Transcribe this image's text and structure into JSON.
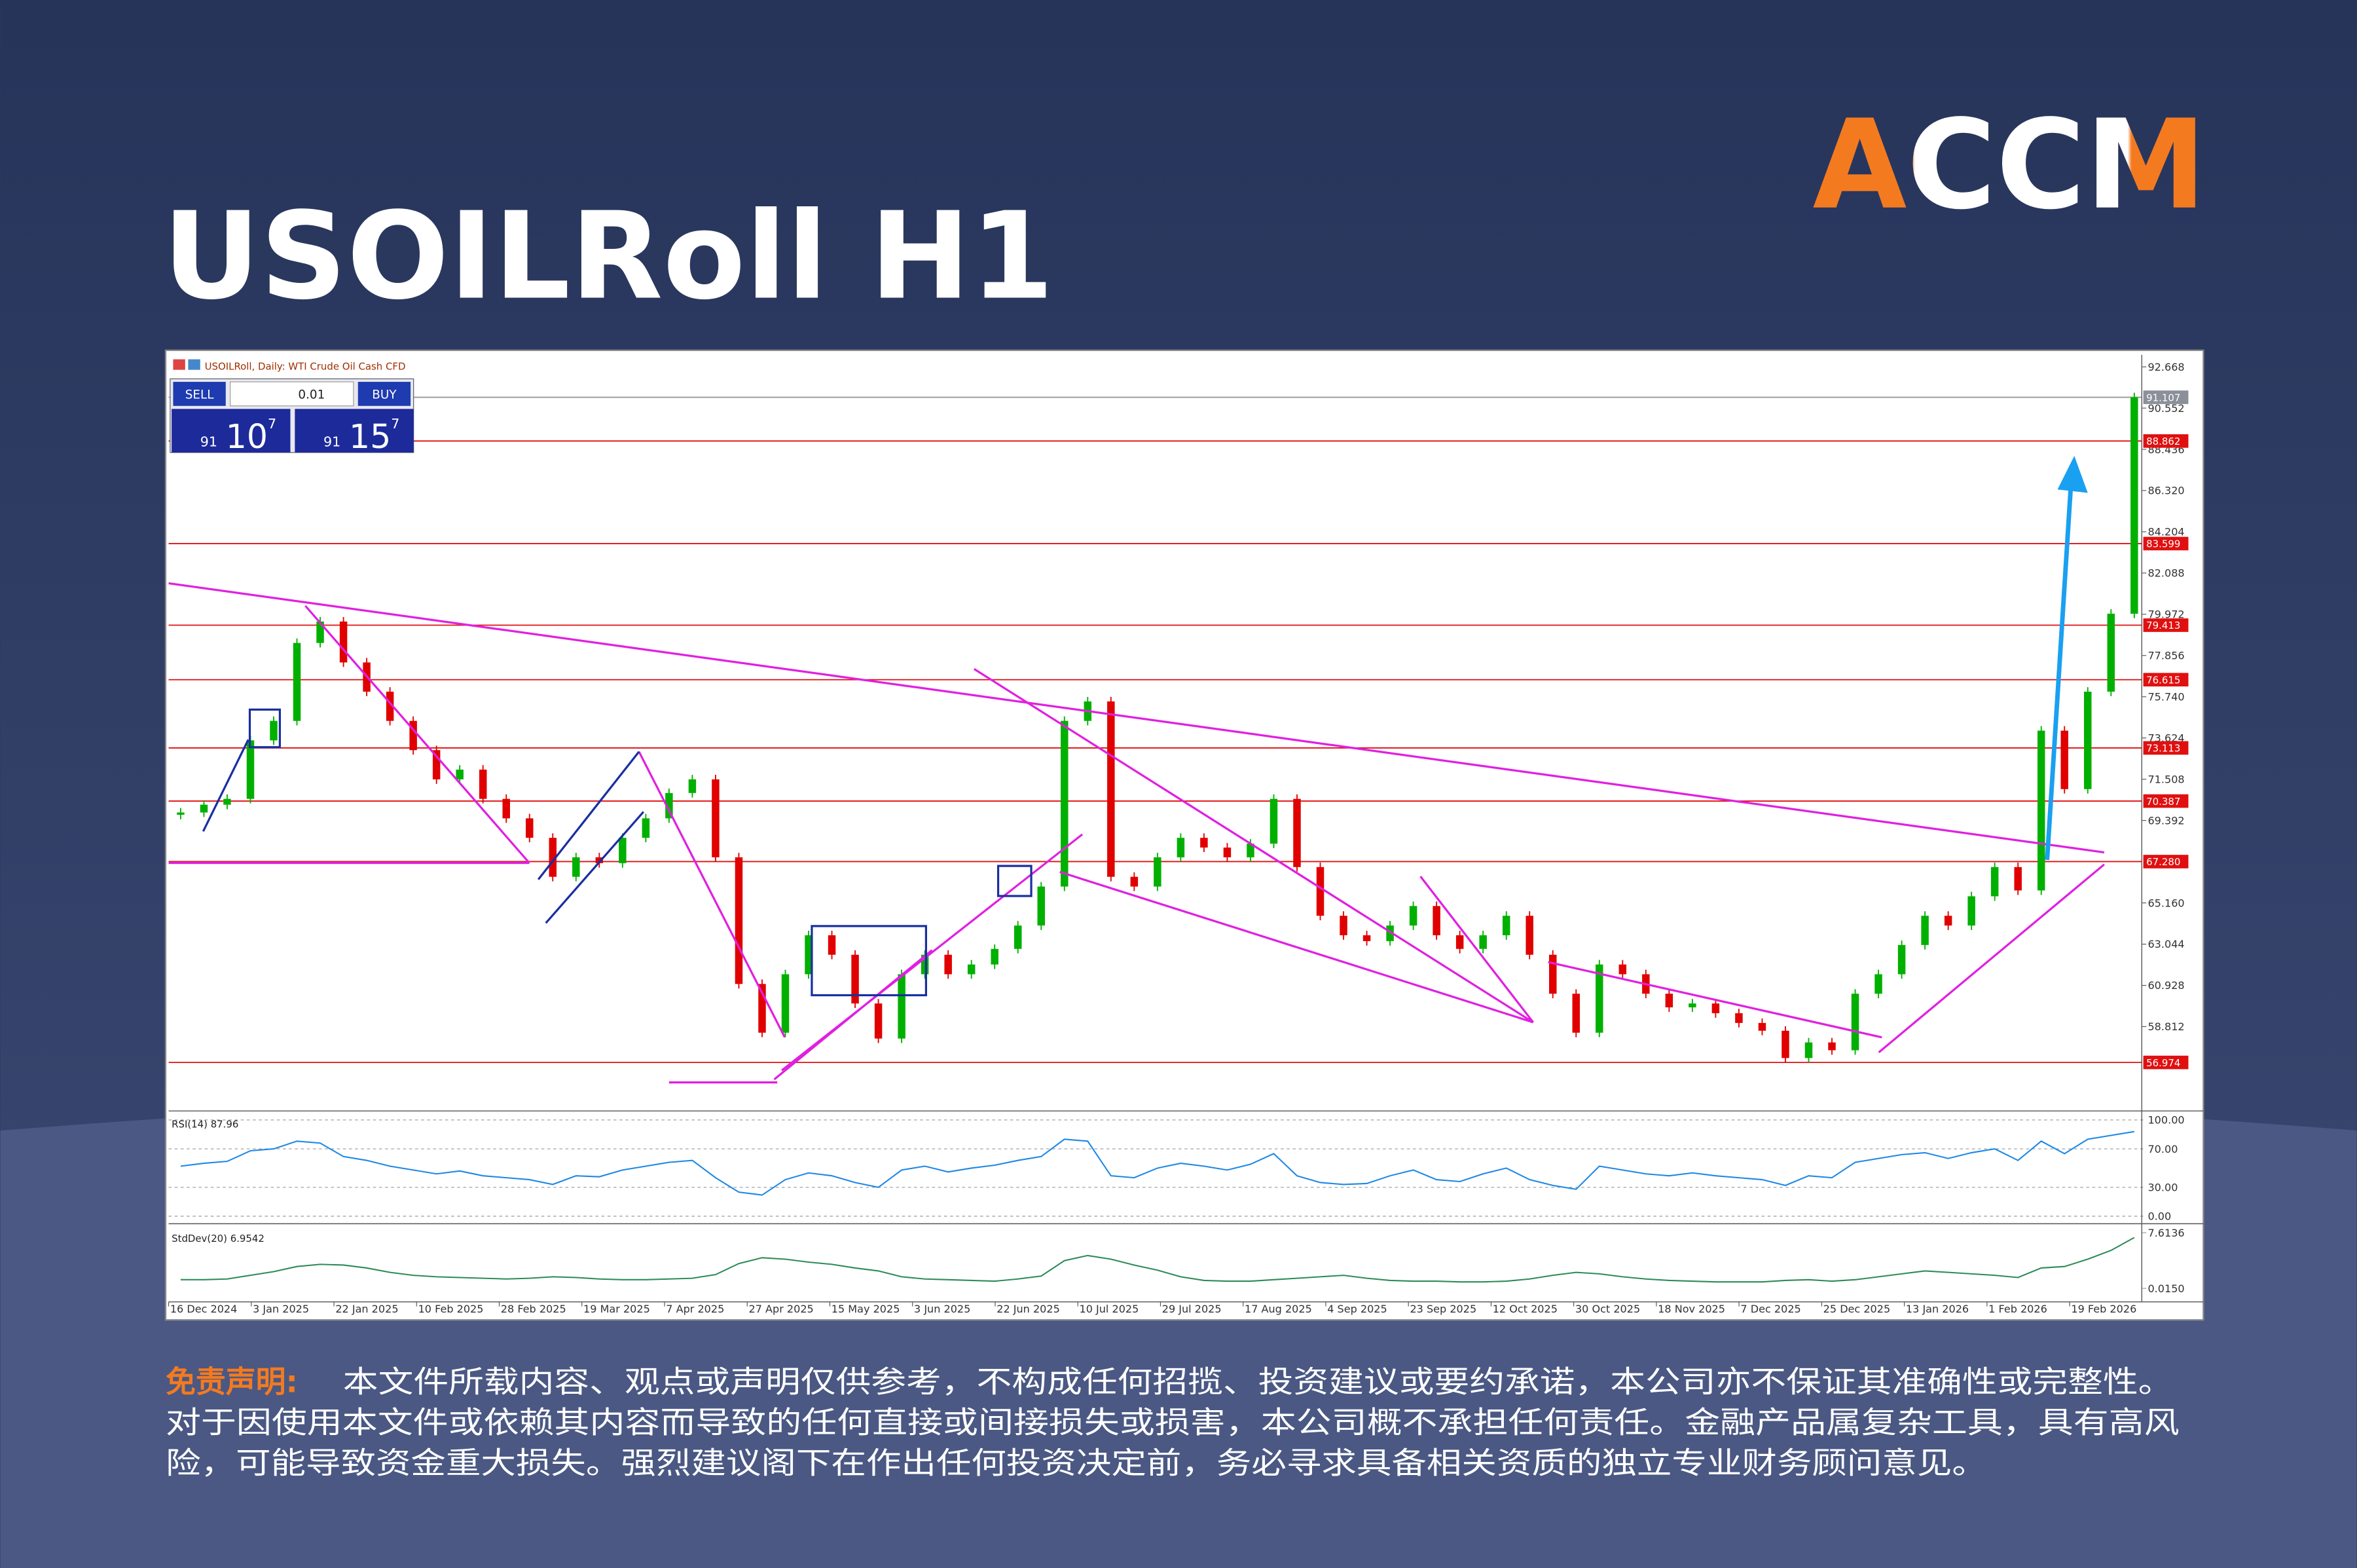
{
  "logo": "ACCM",
  "trade": {
    "sell": "SELL",
    "buy": "BUY",
    "lot": "0.01",
    "sell_price": {
      "prefix": "91",
      "main": "10",
      "sup": "7"
    },
    "buy_price": {
      "prefix": "91",
      "main": "15",
      "sup": "7"
    }
  },
  "chart_data": {
    "type": "candlestick",
    "title": "USOILRoll H1",
    "subtitle": "USOILRoll, Daily: WTI Crude Oil Cash CFD",
    "categories": [
      "16 Dec 2024",
      "3 Jan 2025",
      "22 Jan 2025",
      "10 Feb 2025",
      "28 Feb 2025",
      "19 Mar 2025",
      "7 Apr 2025",
      "27 Apr 2025",
      "15 May 2025",
      "3 Jun 2025",
      "22 Jun 2025",
      "10 Jul 2025",
      "29 Jul 2025",
      "17 Aug 2025",
      "4 Sep 2025",
      "23 Sep 2025",
      "12 Oct 2025",
      "30 Oct 2025",
      "18 Nov 2025",
      "7 Dec 2025",
      "25 Dec 2025",
      "13 Jan 2026",
      "1 Feb 2026",
      "19 Feb 2026"
    ],
    "close": [
      69.8,
      70.2,
      70.5,
      73.5,
      74.5,
      78.5,
      79.6,
      77.5,
      76,
      74.5,
      73,
      71.5,
      72,
      70.5,
      69.5,
      68.5,
      66.5,
      67.5,
      67.2,
      68.5,
      69.5,
      70.8,
      71.5,
      67.5,
      61,
      58.5,
      61.5,
      63.5,
      62.5,
      60,
      58.2,
      61.5,
      62.5,
      61.5,
      62,
      62.8,
      64,
      66,
      74.5,
      75.5,
      66.5,
      66,
      67.5,
      68.5,
      68,
      67.5,
      68.2,
      70.5,
      67,
      64.5,
      63.5,
      63.2,
      64,
      65,
      63.5,
      62.8,
      63.5,
      64.5,
      62.5,
      60.5,
      58.5,
      62,
      61.5,
      60.5,
      59.8,
      60,
      59.5,
      59,
      58.6,
      57.2,
      58,
      57.6,
      60.5,
      61.5,
      63,
      64.5,
      64,
      65.5,
      67,
      65.8,
      74,
      71,
      76,
      80,
      91.107
    ],
    "up_color": "#00b000",
    "down_color": "#e00000",
    "ylim": [
      54.56,
      93.21
    ],
    "yticks": [
      92.668,
      90.552,
      88.436,
      {
        "value": 86.32,
        "label": "86.320"
      },
      84.204,
      82.088,
      79.972,
      77.856,
      {
        "value": 75.74,
        "label": "75.740"
      },
      73.624,
      71.508,
      69.392,
      {
        "value": 65.16,
        "label": "65.160"
      },
      63.044,
      60.928,
      58.812
    ],
    "levels": [
      88.862,
      83.599,
      79.413,
      76.615,
      73.113,
      70.387,
      {
        "value": 67.28,
        "label": "67.280"
      },
      56.974
    ],
    "level_color": "#e01010",
    "current_price": 91.107,
    "rsi": {
      "label": "RSI(14) 87.96",
      "color": "#1e88e5",
      "ylim": [
        -4.7,
        107.8
      ],
      "yticks": [
        {
          "value": 100,
          "label": "100.00"
        },
        {
          "value": 70,
          "label": "70.00"
        },
        {
          "value": 30,
          "label": "30.00"
        },
        {
          "value": 0,
          "label": "0.00"
        }
      ],
      "values": [
        52,
        55,
        57,
        68,
        70,
        78,
        76,
        62,
        58,
        52,
        48,
        44,
        47,
        42,
        40,
        38,
        33,
        42,
        41,
        48,
        52,
        56,
        58,
        40,
        25,
        22,
        38,
        45,
        42,
        35,
        30,
        48,
        52,
        46,
        50,
        53,
        58,
        62,
        80,
        78,
        42,
        40,
        50,
        55,
        52,
        48,
        54,
        65,
        42,
        35,
        33,
        34,
        42,
        48,
        38,
        36,
        44,
        50,
        38,
        32,
        28,
        52,
        48,
        44,
        42,
        45,
        42,
        40,
        38,
        32,
        42,
        40,
        56,
        60,
        64,
        66,
        60,
        66,
        70,
        58,
        78,
        65,
        80,
        84,
        87.96
      ]
    },
    "stddev": {
      "label": "StdDev(20) 6.9542",
      "color": "#2e8b57",
      "ylim": [
        -1.83,
        8.43
      ],
      "yticks": [
        7.6136,
        {
          "value": 0.015,
          "label": "0.0150"
        }
      ],
      "values": [
        1.2,
        1.2,
        1.3,
        1.8,
        2.3,
        3,
        3.3,
        3.2,
        2.8,
        2.2,
        1.8,
        1.6,
        1.5,
        1.4,
        1.3,
        1.4,
        1.6,
        1.5,
        1.3,
        1.2,
        1.2,
        1.3,
        1.4,
        1.9,
        3.4,
        4.2,
        4,
        3.6,
        3.3,
        2.8,
        2.4,
        1.6,
        1.3,
        1.2,
        1.1,
        1,
        1.3,
        1.7,
        3.8,
        4.5,
        4,
        3.2,
        2.5,
        1.6,
        1.1,
        1,
        1,
        1.2,
        1.4,
        1.6,
        1.8,
        1.4,
        1.1,
        1,
        1,
        0.9,
        0.9,
        1,
        1.3,
        1.8,
        2.2,
        2,
        1.6,
        1.3,
        1.1,
        1,
        0.9,
        0.9,
        0.9,
        1.1,
        1.2,
        1,
        1.2,
        1.6,
        2,
        2.4,
        2.2,
        2,
        1.8,
        1.5,
        2.8,
        3,
        4,
        5.2,
        6.9542
      ]
    }
  },
  "disclaimer": {
    "label": "免责声明:",
    "lines": [
      "本文件所载内容、观点或声明仅供参考，不构成任何招揽、投资建议或要约承诺，本公司亦不保证其准确性或完整性。",
      "对于因使用本文件或依赖其内容而导致的任何直接或间接损失或损害，本公司概不承担任何责任。金融产品属复杂工具，具有高风",
      "险，可能导致资金重大损失。强烈建议阁下在作出任何投资决定前，务必寻求具备相关资质的独立专业财务顾问意见。"
    ]
  }
}
